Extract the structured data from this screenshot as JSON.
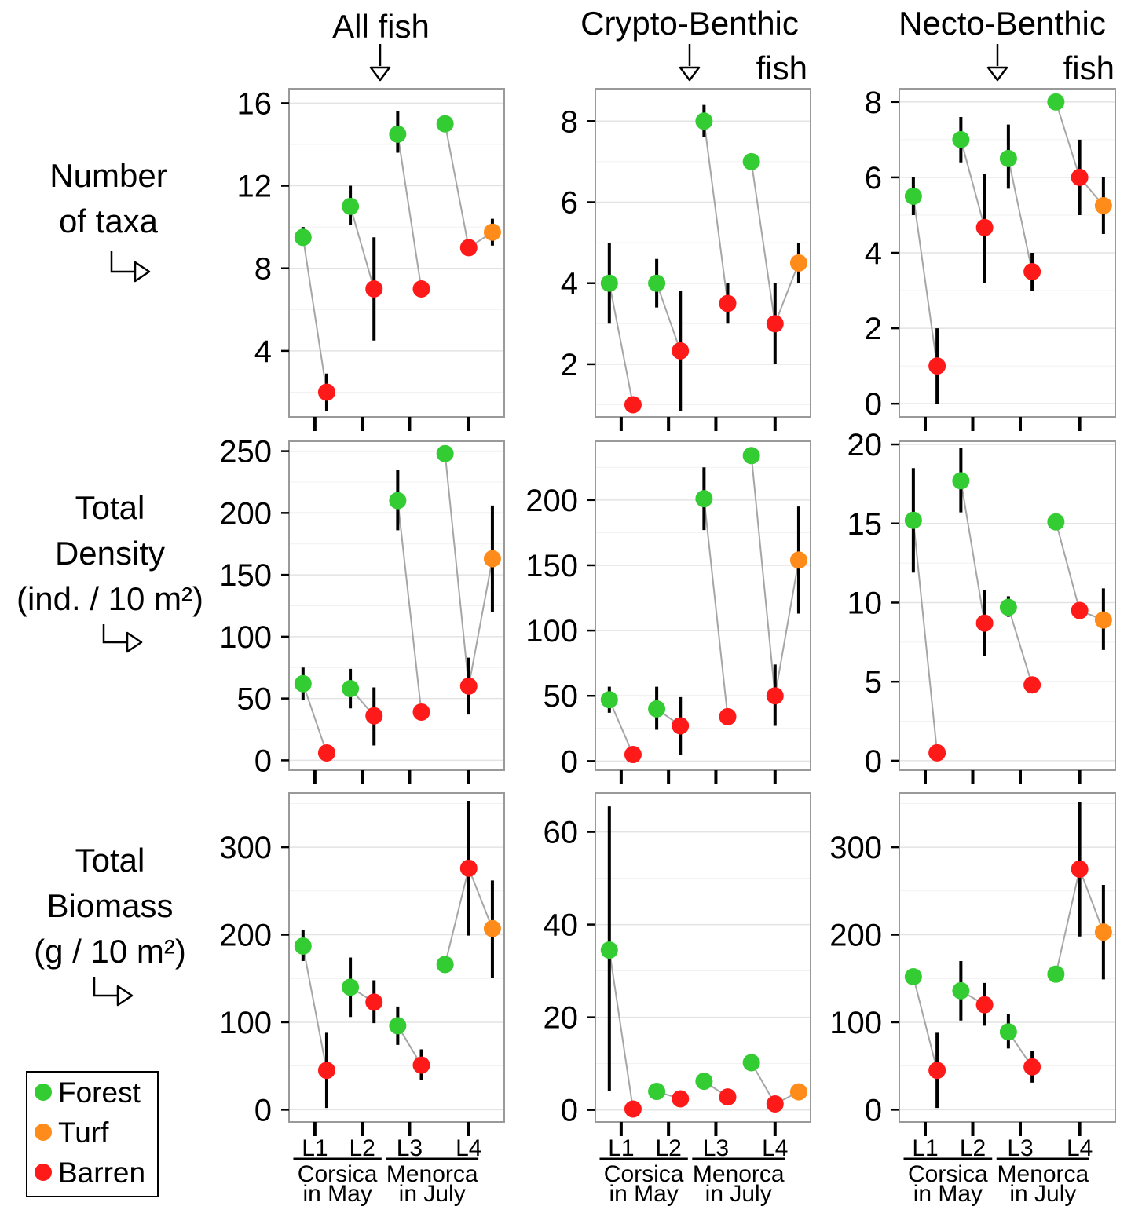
{
  "chart_data": {
    "type": "scatter",
    "column_titles": [
      {
        "lines": [
          "All fish"
        ]
      },
      {
        "lines": [
          "Crypto-Benthic",
          "fish"
        ]
      },
      {
        "lines": [
          "Necto-Benthic",
          "fish"
        ]
      }
    ],
    "row_titles": [
      {
        "lines": [
          "Number",
          "of taxa"
        ]
      },
      {
        "lines": [
          "Total",
          "Density",
          "(ind. / 10 m²)"
        ]
      },
      {
        "lines": [
          "Total",
          "Biomass",
          "(g / 10 m²)"
        ]
      }
    ],
    "x_tick_labels": [
      "L1",
      "L2",
      "L3",
      "L4"
    ],
    "region_labels": [
      {
        "lines": [
          "Corsica",
          "in May"
        ]
      },
      {
        "lines": [
          "Menorca",
          "in July"
        ]
      }
    ],
    "legend": {
      "placement": "bottom-left",
      "entries": [
        {
          "name": "Forest",
          "color": "#33cc33"
        },
        {
          "name": "Turf",
          "color": "#ff8c1a"
        },
        {
          "name": "Barren",
          "color": "#ff1a1a"
        }
      ]
    },
    "colors": {
      "Forest": "#33cc33",
      "Turf": "#ff8c1a",
      "Barren": "#ff1a1a",
      "connector": "#a6a6a6",
      "errorbar": "#000000"
    },
    "x_positions": [
      {
        "location": "L1",
        "habitat": "Forest"
      },
      {
        "location": "L1",
        "habitat": "Barren"
      },
      {
        "location": "L2",
        "habitat": "Forest"
      },
      {
        "location": "L2",
        "habitat": "Barren"
      },
      {
        "location": "L3",
        "habitat": "Forest"
      },
      {
        "location": "L3",
        "habitat": "Barren"
      },
      {
        "location": "L4",
        "habitat": "Forest"
      },
      {
        "location": "L4",
        "habitat": "Barren"
      },
      {
        "location": "L4",
        "habitat": "Turf"
      }
    ],
    "grid": true,
    "panels": [
      {
        "row": 0,
        "col": 0,
        "ylim": [
          0.8,
          16.7
        ],
        "yticks": [
          4,
          8,
          12,
          16
        ],
        "points": [
          {
            "pos": 0,
            "habitat": "Forest",
            "y": 9.5,
            "lo": 9.1,
            "hi": 10.0
          },
          {
            "pos": 1,
            "habitat": "Barren",
            "y": 2.0,
            "lo": 1.1,
            "hi": 2.9
          },
          {
            "pos": 2,
            "habitat": "Forest",
            "y": 11.0,
            "lo": 10.1,
            "hi": 12.0
          },
          {
            "pos": 3,
            "habitat": "Barren",
            "y": 7.0,
            "lo": 4.5,
            "hi": 9.5
          },
          {
            "pos": 4,
            "habitat": "Forest",
            "y": 14.5,
            "lo": 13.6,
            "hi": 15.6
          },
          {
            "pos": 5,
            "habitat": "Barren",
            "y": 7.0,
            "lo": 7.0,
            "hi": 7.0
          },
          {
            "pos": 6,
            "habitat": "Forest",
            "y": 15.0,
            "lo": 15.0,
            "hi": 15.0
          },
          {
            "pos": 7,
            "habitat": "Barren",
            "y": 9.0,
            "lo": 9.0,
            "hi": 9.0
          },
          {
            "pos": 8,
            "habitat": "Turf",
            "y": 9.75,
            "lo": 9.1,
            "hi": 10.4
          }
        ]
      },
      {
        "row": 0,
        "col": 1,
        "ylim": [
          0.7,
          8.8
        ],
        "yticks": [
          2,
          4,
          6,
          8
        ],
        "points": [
          {
            "pos": 0,
            "habitat": "Forest",
            "y": 4.0,
            "lo": 3.0,
            "hi": 5.0
          },
          {
            "pos": 1,
            "habitat": "Barren",
            "y": 1.0,
            "lo": 1.0,
            "hi": 1.0
          },
          {
            "pos": 2,
            "habitat": "Forest",
            "y": 4.0,
            "lo": 3.4,
            "hi": 4.6
          },
          {
            "pos": 3,
            "habitat": "Barren",
            "y": 2.33,
            "lo": 0.85,
            "hi": 3.8
          },
          {
            "pos": 4,
            "habitat": "Forest",
            "y": 8.0,
            "lo": 7.6,
            "hi": 8.4
          },
          {
            "pos": 5,
            "habitat": "Barren",
            "y": 3.5,
            "lo": 3.0,
            "hi": 4.0
          },
          {
            "pos": 6,
            "habitat": "Forest",
            "y": 7.0,
            "lo": 7.0,
            "hi": 7.0
          },
          {
            "pos": 7,
            "habitat": "Barren",
            "y": 3.0,
            "lo": 2.0,
            "hi": 4.0
          },
          {
            "pos": 8,
            "habitat": "Turf",
            "y": 4.5,
            "lo": 4.0,
            "hi": 5.0
          }
        ]
      },
      {
        "row": 0,
        "col": 2,
        "ylim": [
          -0.35,
          8.35
        ],
        "yticks": [
          0,
          2,
          4,
          6,
          8
        ],
        "points": [
          {
            "pos": 0,
            "habitat": "Forest",
            "y": 5.5,
            "lo": 5.0,
            "hi": 6.0
          },
          {
            "pos": 1,
            "habitat": "Barren",
            "y": 1.0,
            "lo": 0.0,
            "hi": 2.0
          },
          {
            "pos": 2,
            "habitat": "Forest",
            "y": 7.0,
            "lo": 6.4,
            "hi": 7.6
          },
          {
            "pos": 3,
            "habitat": "Barren",
            "y": 4.67,
            "lo": 3.2,
            "hi": 6.1
          },
          {
            "pos": 4,
            "habitat": "Forest",
            "y": 6.5,
            "lo": 5.7,
            "hi": 7.4
          },
          {
            "pos": 5,
            "habitat": "Barren",
            "y": 3.5,
            "lo": 3.0,
            "hi": 4.0
          },
          {
            "pos": 6,
            "habitat": "Forest",
            "y": 8.0,
            "lo": 8.0,
            "hi": 8.0
          },
          {
            "pos": 7,
            "habitat": "Barren",
            "y": 6.0,
            "lo": 5.0,
            "hi": 7.0
          },
          {
            "pos": 8,
            "habitat": "Turf",
            "y": 5.25,
            "lo": 4.5,
            "hi": 6.0
          }
        ]
      },
      {
        "row": 1,
        "col": 0,
        "ylim": [
          -8,
          258
        ],
        "yticks": [
          0,
          50,
          100,
          150,
          200,
          250
        ],
        "points": [
          {
            "pos": 0,
            "habitat": "Forest",
            "y": 62,
            "lo": 49,
            "hi": 75
          },
          {
            "pos": 1,
            "habitat": "Barren",
            "y": 6,
            "lo": 6,
            "hi": 6
          },
          {
            "pos": 2,
            "habitat": "Forest",
            "y": 58,
            "lo": 42,
            "hi": 74
          },
          {
            "pos": 3,
            "habitat": "Barren",
            "y": 36,
            "lo": 12,
            "hi": 59
          },
          {
            "pos": 4,
            "habitat": "Forest",
            "y": 210,
            "lo": 186,
            "hi": 235
          },
          {
            "pos": 5,
            "habitat": "Barren",
            "y": 39,
            "lo": 39,
            "hi": 39
          },
          {
            "pos": 6,
            "habitat": "Forest",
            "y": 248,
            "lo": 248,
            "hi": 248
          },
          {
            "pos": 7,
            "habitat": "Barren",
            "y": 60,
            "lo": 37,
            "hi": 83
          },
          {
            "pos": 8,
            "habitat": "Turf",
            "y": 163,
            "lo": 120,
            "hi": 206
          }
        ]
      },
      {
        "row": 1,
        "col": 1,
        "ylim": [
          -7,
          245
        ],
        "yticks": [
          0,
          50,
          100,
          150,
          200
        ],
        "points": [
          {
            "pos": 0,
            "habitat": "Forest",
            "y": 47,
            "lo": 37,
            "hi": 57
          },
          {
            "pos": 1,
            "habitat": "Barren",
            "y": 5,
            "lo": 5,
            "hi": 5
          },
          {
            "pos": 2,
            "habitat": "Forest",
            "y": 40,
            "lo": 24,
            "hi": 57
          },
          {
            "pos": 3,
            "habitat": "Barren",
            "y": 27,
            "lo": 5,
            "hi": 49
          },
          {
            "pos": 4,
            "habitat": "Forest",
            "y": 201,
            "lo": 177,
            "hi": 225
          },
          {
            "pos": 5,
            "habitat": "Barren",
            "y": 34,
            "lo": 34,
            "hi": 34
          },
          {
            "pos": 6,
            "habitat": "Forest",
            "y": 234,
            "lo": 234,
            "hi": 234
          },
          {
            "pos": 7,
            "habitat": "Barren",
            "y": 50,
            "lo": 27,
            "hi": 74
          },
          {
            "pos": 8,
            "habitat": "Turf",
            "y": 154,
            "lo": 113,
            "hi": 195
          }
        ]
      },
      {
        "row": 1,
        "col": 2,
        "ylim": [
          -0.6,
          20.2
        ],
        "yticks": [
          0,
          5,
          10,
          15,
          20
        ],
        "points": [
          {
            "pos": 0,
            "habitat": "Forest",
            "y": 15.2,
            "lo": 11.9,
            "hi": 18.5
          },
          {
            "pos": 1,
            "habitat": "Barren",
            "y": 0.5,
            "lo": 0.5,
            "hi": 0.5
          },
          {
            "pos": 2,
            "habitat": "Forest",
            "y": 17.7,
            "lo": 15.7,
            "hi": 19.8
          },
          {
            "pos": 3,
            "habitat": "Barren",
            "y": 8.7,
            "lo": 6.6,
            "hi": 10.8
          },
          {
            "pos": 4,
            "habitat": "Forest",
            "y": 9.7,
            "lo": 9.1,
            "hi": 10.4
          },
          {
            "pos": 5,
            "habitat": "Barren",
            "y": 4.8,
            "lo": 4.8,
            "hi": 4.8
          },
          {
            "pos": 6,
            "habitat": "Forest",
            "y": 15.1,
            "lo": 15.1,
            "hi": 15.1
          },
          {
            "pos": 7,
            "habitat": "Barren",
            "y": 9.5,
            "lo": 9.1,
            "hi": 9.9
          },
          {
            "pos": 8,
            "habitat": "Turf",
            "y": 8.9,
            "lo": 7.0,
            "hi": 10.9
          }
        ]
      },
      {
        "row": 2,
        "col": 0,
        "ylim": [
          -14,
          362
        ],
        "yticks": [
          0,
          100,
          200,
          300
        ],
        "points": [
          {
            "pos": 0,
            "habitat": "Forest",
            "y": 187,
            "lo": 170,
            "hi": 205
          },
          {
            "pos": 1,
            "habitat": "Barren",
            "y": 45,
            "lo": 2,
            "hi": 88
          },
          {
            "pos": 2,
            "habitat": "Forest",
            "y": 140,
            "lo": 106,
            "hi": 174
          },
          {
            "pos": 3,
            "habitat": "Barren",
            "y": 123,
            "lo": 99,
            "hi": 148
          },
          {
            "pos": 4,
            "habitat": "Forest",
            "y": 96,
            "lo": 74,
            "hi": 118
          },
          {
            "pos": 5,
            "habitat": "Barren",
            "y": 51,
            "lo": 34,
            "hi": 69
          },
          {
            "pos": 6,
            "habitat": "Forest",
            "y": 166,
            "lo": 166,
            "hi": 166
          },
          {
            "pos": 7,
            "habitat": "Barren",
            "y": 276,
            "lo": 199,
            "hi": 353
          },
          {
            "pos": 8,
            "habitat": "Turf",
            "y": 207,
            "lo": 151,
            "hi": 262
          }
        ]
      },
      {
        "row": 2,
        "col": 1,
        "ylim": [
          -2.6,
          68.4
        ],
        "yticks": [
          0,
          20,
          40,
          60
        ],
        "points": [
          {
            "pos": 0,
            "habitat": "Forest",
            "y": 34.5,
            "lo": 4,
            "hi": 65.5
          },
          {
            "pos": 1,
            "habitat": "Barren",
            "y": 0.2,
            "lo": 0.2,
            "hi": 0.2
          },
          {
            "pos": 2,
            "habitat": "Forest",
            "y": 4.0,
            "lo": 4.0,
            "hi": 4.0
          },
          {
            "pos": 3,
            "habitat": "Barren",
            "y": 2.4,
            "lo": 2.4,
            "hi": 2.4
          },
          {
            "pos": 4,
            "habitat": "Forest",
            "y": 6.2,
            "lo": 6.2,
            "hi": 6.2
          },
          {
            "pos": 5,
            "habitat": "Barren",
            "y": 2.8,
            "lo": 2.8,
            "hi": 2.8
          },
          {
            "pos": 6,
            "habitat": "Forest",
            "y": 10.2,
            "lo": 10.2,
            "hi": 10.2
          },
          {
            "pos": 7,
            "habitat": "Barren",
            "y": 1.3,
            "lo": 1.3,
            "hi": 1.3
          },
          {
            "pos": 8,
            "habitat": "Turf",
            "y": 3.9,
            "lo": 3.9,
            "hi": 3.9
          }
        ]
      },
      {
        "row": 2,
        "col": 2,
        "ylim": [
          -14,
          362
        ],
        "yticks": [
          0,
          100,
          200,
          300
        ],
        "points": [
          {
            "pos": 0,
            "habitat": "Forest",
            "y": 152,
            "lo": 152,
            "hi": 152
          },
          {
            "pos": 1,
            "habitat": "Barren",
            "y": 45,
            "lo": 2,
            "hi": 88
          },
          {
            "pos": 2,
            "habitat": "Forest",
            "y": 136,
            "lo": 102,
            "hi": 170
          },
          {
            "pos": 3,
            "habitat": "Barren",
            "y": 120,
            "lo": 96,
            "hi": 145
          },
          {
            "pos": 4,
            "habitat": "Forest",
            "y": 89,
            "lo": 70,
            "hi": 109
          },
          {
            "pos": 5,
            "habitat": "Barren",
            "y": 49,
            "lo": 31,
            "hi": 67
          },
          {
            "pos": 6,
            "habitat": "Forest",
            "y": 155,
            "lo": 155,
            "hi": 155
          },
          {
            "pos": 7,
            "habitat": "Barren",
            "y": 275,
            "lo": 198,
            "hi": 352
          },
          {
            "pos": 8,
            "habitat": "Turf",
            "y": 203,
            "lo": 149,
            "hi": 257
          }
        ]
      }
    ]
  }
}
